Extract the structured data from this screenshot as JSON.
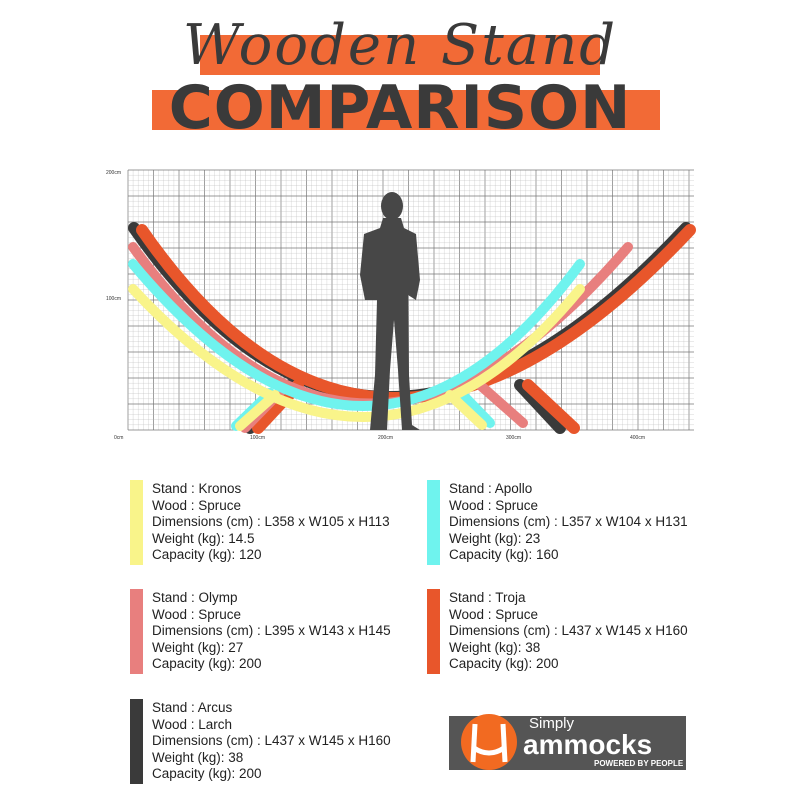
{
  "header": {
    "title_script": "Wooden Stand",
    "title_main": "COMPARISON"
  },
  "chart": {
    "y_ticks": [
      "200cm",
      "100cm"
    ],
    "x_ticks": [
      "0cm",
      "100cm",
      "200cm",
      "300cm",
      "400cm"
    ]
  },
  "stands": [
    {
      "color": "#f9f48a",
      "stand": "Stand : Kronos",
      "wood": "Wood : Spruce",
      "dimensions": "Dimensions (cm) : L358 x W105 x H113",
      "weight": "Weight (kg):  14.5",
      "capacity": "Capacity (kg): 120"
    },
    {
      "color": "#6ff3ee",
      "stand": "Stand : Apollo",
      "wood": "Wood : Spruce",
      "dimensions": "Dimensions (cm) : L357 x W104 x H131",
      "weight": "Weight (kg):  23",
      "capacity": "Capacity (kg): 160"
    },
    {
      "color": "#e87f7e",
      "stand": "Stand : Olymp",
      "wood": "Wood : Spruce",
      "dimensions": "Dimensions (cm) : L395 x W143 x H145",
      "weight": "Weight (kg):  27",
      "capacity": "Capacity (kg): 200"
    },
    {
      "color": "#e8562b",
      "stand": "Stand : Troja",
      "wood": "Wood : Spruce",
      "dimensions": "Dimensions (cm) : L437 x W145 x H160",
      "weight": "Weight (kg):  38",
      "capacity": "Capacity (kg): 200"
    },
    {
      "color": "#3a3a3a",
      "stand": "Stand : Arcus",
      "wood": "Wood : Larch",
      "dimensions": "Dimensions (cm) : L437 x W145 x H160",
      "weight": "Weight (kg):  38",
      "capacity": "Capacity (kg): 200"
    }
  ],
  "logo": {
    "simply": "Simply",
    "brand": "ammocks",
    "tagline": "POWERED BY PEOPLE"
  }
}
